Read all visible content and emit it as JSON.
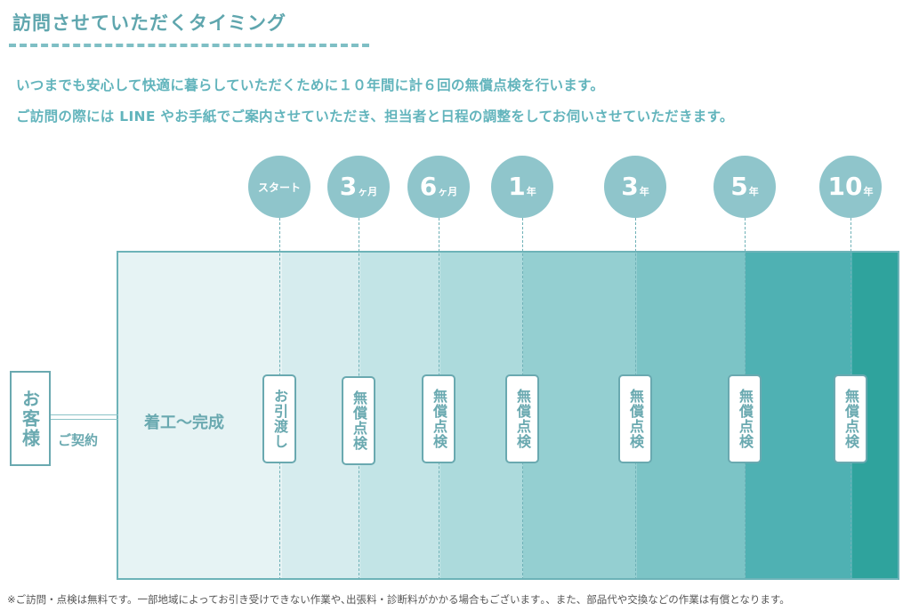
{
  "heading": {
    "title": "訪問させていただくタイミング",
    "intro_line1": "いつまでも安心して快適に暮らしていただくために１０年間に計６回の無償点検を行います。",
    "intro_line2": "ご訪問の際には LINE やお手紙でご案内させていただき、担当者と日程の調整をしてお伺いさせていただきます。"
  },
  "diagram": {
    "customer": "お客様",
    "contract": "ご契約",
    "construction": "着工～完成",
    "milestones": [
      {
        "num": "スタート",
        "unit": "",
        "label": "お引渡し"
      },
      {
        "num": "3",
        "unit": "ヶ月",
        "label": "無償点検"
      },
      {
        "num": "6",
        "unit": "ヶ月",
        "label": "無償点検"
      },
      {
        "num": "1",
        "unit": "年",
        "label": "無償点検"
      },
      {
        "num": "3",
        "unit": "年",
        "label": "無償点検"
      },
      {
        "num": "5",
        "unit": "年",
        "label": "無償点検"
      },
      {
        "num": "10",
        "unit": "年",
        "label": "無償点検"
      }
    ],
    "colors": {
      "circle": "#8fc5cb",
      "accent": "#6aa9b0",
      "bands": [
        "#e6f3f4",
        "#d6ecee",
        "#c2e4e6",
        "#acdadc",
        "#94cfd1",
        "#7cc4c6",
        "#4fb1b3",
        "#2fa39d"
      ]
    }
  },
  "footnote": "※ご訪問・点検は無料です。一部地域によってお引き受けできない作業や､出張料・診断料がかかる場合もございます｡、また、部品代や交換などの作業は有償となります。"
}
